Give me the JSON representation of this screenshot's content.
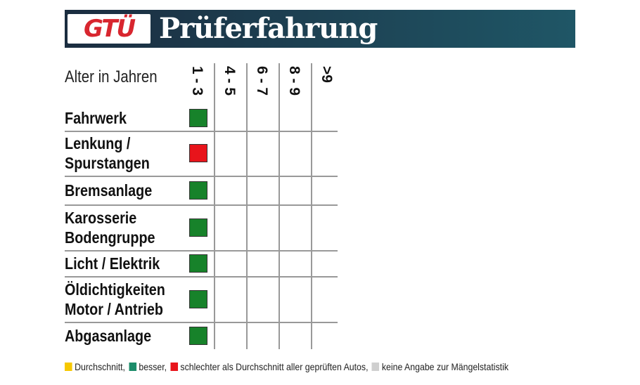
{
  "header": {
    "logo": "GTÜ",
    "title": "Prüferfahrung"
  },
  "table": {
    "axis_label": "Alter in Jahren",
    "columns": [
      "1 - 3",
      "4 - 5",
      "6 - 7",
      "8 - 9",
      ">9"
    ],
    "rows": [
      {
        "label": "Fahrwerk",
        "cells": [
          "#17822a",
          null,
          null,
          null,
          null
        ]
      },
      {
        "label": "Lenkung / Spurstangen",
        "cells": [
          "#e8141b",
          null,
          null,
          null,
          null
        ]
      },
      {
        "label": "Bremsanlage",
        "cells": [
          "#17822a",
          null,
          null,
          null,
          null
        ]
      },
      {
        "label": "Karosserie Bodengruppe",
        "cells": [
          "#17822a",
          null,
          null,
          null,
          null
        ]
      },
      {
        "label": "Licht / Elektrik",
        "cells": [
          "#17822a",
          null,
          null,
          null,
          null
        ]
      },
      {
        "label": "Öldichtigkeiten Motor / Antrieb",
        "cells": [
          "#17822a",
          null,
          null,
          null,
          null
        ]
      },
      {
        "label": "Abgasanlage",
        "cells": [
          "#17822a",
          null,
          null,
          null,
          null
        ]
      }
    ]
  },
  "legend": [
    {
      "label": "Durchschnitt,",
      "color": "#f6c800"
    },
    {
      "label": "besser,",
      "color": "#1c8c6a"
    },
    {
      "label": "schlechter als Durchschnitt aller geprüften Autos,",
      "color": "#e8141b"
    },
    {
      "label": "keine Angabe zur Mängelstatistik",
      "color": "#cfcfcf"
    }
  ]
}
